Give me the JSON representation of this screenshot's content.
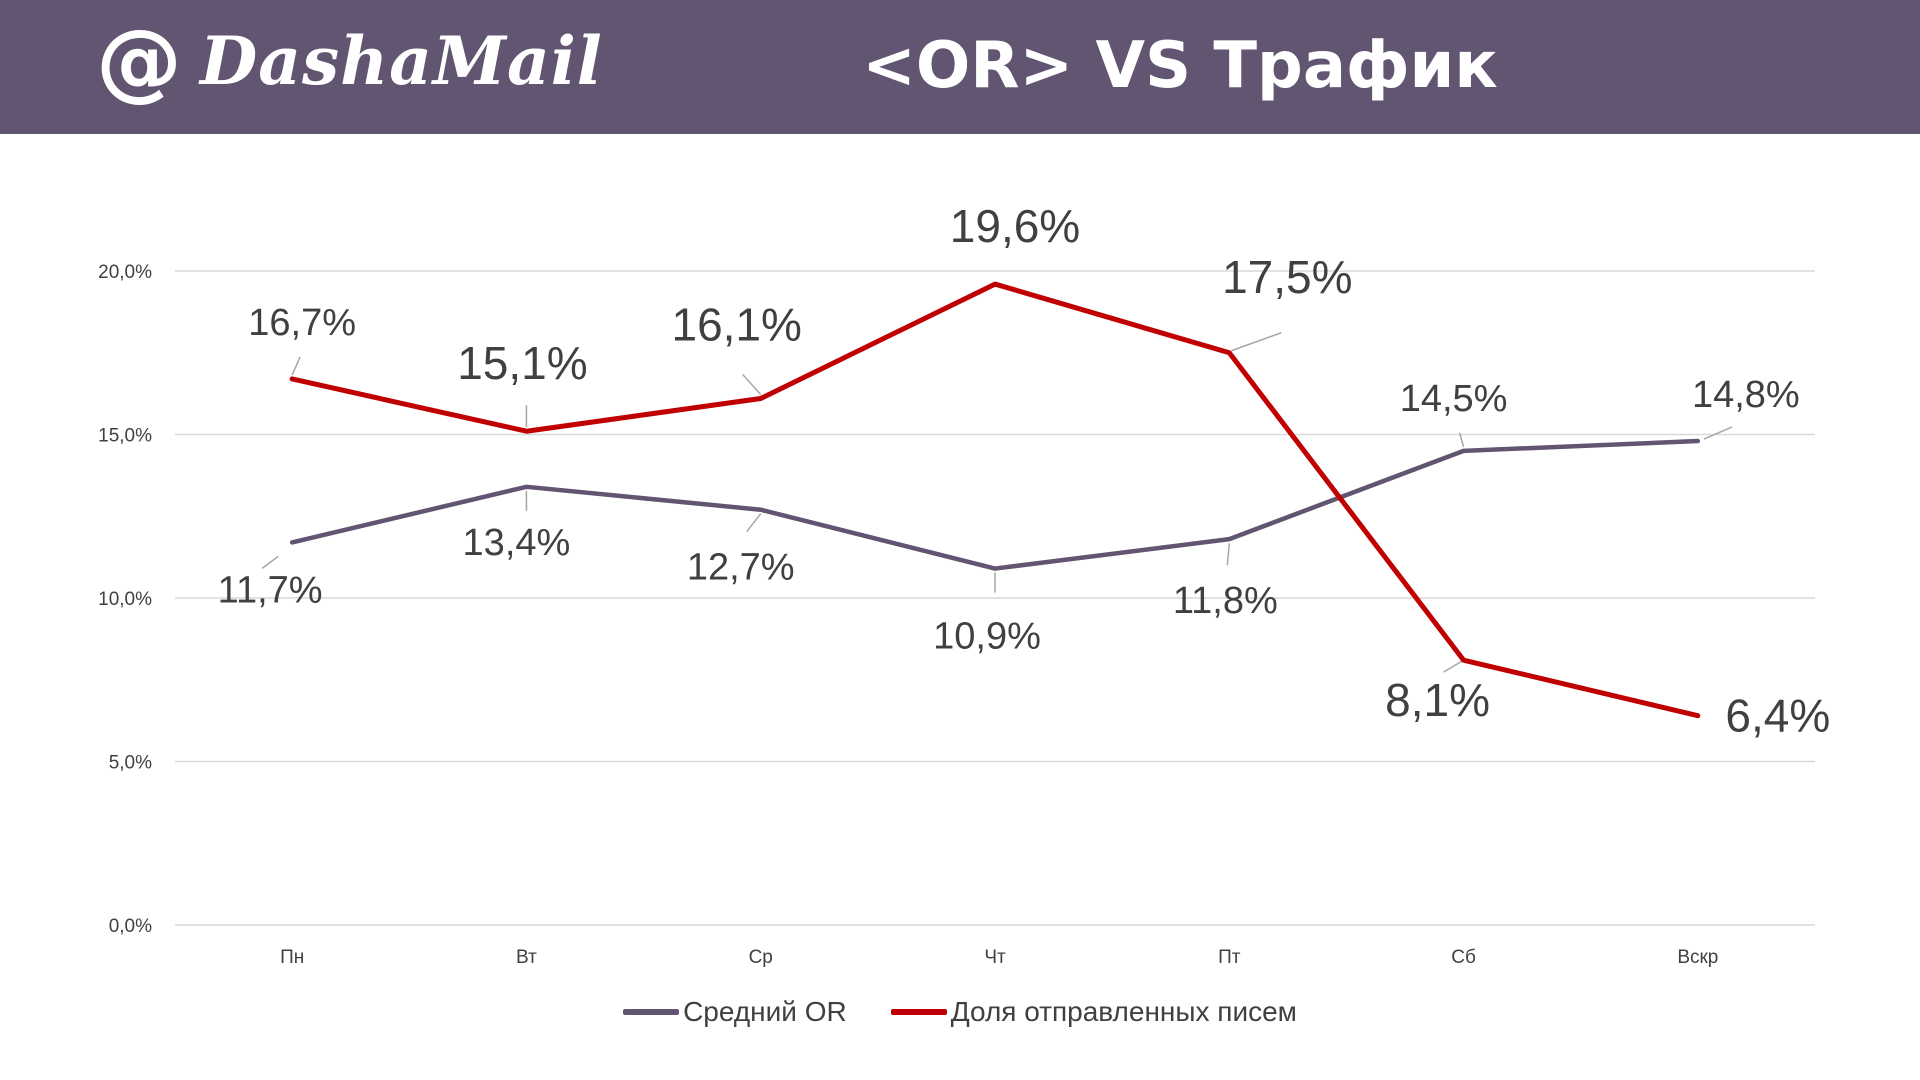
{
  "header": {
    "logo_at": "@",
    "logo_text": "DashaMail",
    "title": "<OR> VS Трафик"
  },
  "colors": {
    "header_bg": "#625571",
    "series_or": "#625571",
    "series_share": "#C00000",
    "grid": "#d9d9d9",
    "text": "#404040"
  },
  "chart_data": {
    "type": "line",
    "categories": [
      "Пн",
      "Вт",
      "Ср",
      "Чт",
      "Пт",
      "Сб",
      "Вскр"
    ],
    "yticks": [
      "0,0%",
      "5,0%",
      "10,0%",
      "15,0%",
      "20,0%"
    ],
    "ylim": [
      0,
      20
    ],
    "grid": true,
    "legend_position": "bottom",
    "series": [
      {
        "name": "Средний OR",
        "values": [
          11.7,
          13.4,
          12.7,
          10.9,
          11.8,
          14.5,
          14.8
        ],
        "labels": [
          "11,7%",
          "13,4%",
          "12,7%",
          "10,9%",
          "11,8%",
          "14,5%",
          "14,8%"
        ]
      },
      {
        "name": "Доля отправленных писем",
        "values": [
          16.7,
          15.1,
          16.1,
          19.6,
          17.5,
          8.1,
          6.4
        ],
        "labels": [
          "16,7%",
          "15,1%",
          "16,1%",
          "19,6%",
          "17,5%",
          "8,1%",
          "6,4%"
        ]
      }
    ]
  }
}
